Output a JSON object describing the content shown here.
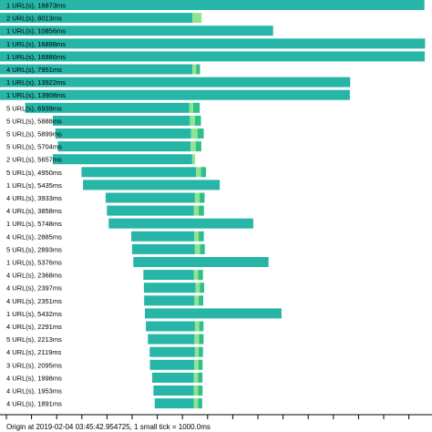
{
  "colors": {
    "main": "#26b5a7",
    "light_green": "#8fe58f",
    "mid_green": "#2fc08a",
    "axis": "#000000",
    "background": "#ffffff"
  },
  "scale": {
    "ms_per_small_tick": 1000,
    "start_ms": 0,
    "end_ms": 17000
  },
  "footer": {
    "text": "Origin at 2019-02-04 03:45:42.954725, 1 small tick = 1000.0ms"
  },
  "rows": [
    {
      "label": "1 URL(s), 16873ms",
      "start_ms": 0,
      "total_ms": 16873,
      "segments": [
        16873
      ]
    },
    {
      "label": "2 URL(s), 8013ms",
      "start_ms": 0,
      "total_ms": 8013,
      "segments": [
        7650,
        363
      ]
    },
    {
      "label": "1 URL(s), 10856ms",
      "start_ms": 0,
      "total_ms": 10856,
      "segments": [
        10856
      ]
    },
    {
      "label": "1 URL(s), 16898ms",
      "start_ms": 0,
      "total_ms": 16898,
      "segments": [
        16898
      ]
    },
    {
      "label": "1 URL(s), 16886ms",
      "start_ms": 0,
      "total_ms": 16886,
      "segments": [
        16886
      ]
    },
    {
      "label": "4 URL(s), 7951ms",
      "start_ms": 0,
      "total_ms": 7951,
      "segments": [
        7650,
        150,
        151
      ]
    },
    {
      "label": "1 URL(s), 13922ms",
      "start_ms": 0,
      "total_ms": 13922,
      "segments": [
        13922
      ]
    },
    {
      "label": "1 URL(s), 13908ms",
      "start_ms": 0,
      "total_ms": 13908,
      "segments": [
        13908
      ]
    },
    {
      "label": "5 URL(s), 6939ms",
      "start_ms": 1000,
      "total_ms": 6939,
      "segments": [
        6530,
        150,
        259
      ]
    },
    {
      "label": "5 URL(s), 5888ms",
      "start_ms": 2100,
      "total_ms": 5888,
      "segments": [
        5450,
        200,
        238
      ]
    },
    {
      "label": "5 URL(s), 5899ms",
      "start_ms": 2200,
      "total_ms": 5899,
      "segments": [
        5400,
        250,
        249
      ]
    },
    {
      "label": "5 URL(s), 5704ms",
      "start_ms": 2300,
      "total_ms": 5704,
      "segments": [
        5280,
        200,
        224
      ]
    },
    {
      "label": "2 URL(s), 5657ms",
      "start_ms": 2100,
      "total_ms": 5657,
      "segments": [
        5540,
        117
      ]
    },
    {
      "label": "5 URL(s), 4950ms",
      "start_ms": 3240,
      "total_ms": 4950,
      "segments": [
        4550,
        200,
        200
      ]
    },
    {
      "label": "1 URL(s), 5435ms",
      "start_ms": 3300,
      "total_ms": 5435,
      "segments": [
        5435
      ]
    },
    {
      "label": "4 URL(s), 3933ms",
      "start_ms": 4200,
      "total_ms": 3933,
      "segments": [
        3550,
        180,
        203
      ]
    },
    {
      "label": "4 URL(s), 3858ms",
      "start_ms": 4250,
      "total_ms": 3858,
      "segments": [
        3450,
        200,
        208
      ]
    },
    {
      "label": "1 URL(s), 5748ms",
      "start_ms": 4320,
      "total_ms": 5748,
      "segments": [
        5748
      ]
    },
    {
      "label": "4 URL(s), 2885ms",
      "start_ms": 5220,
      "total_ms": 2885,
      "segments": [
        2500,
        180,
        205
      ]
    },
    {
      "label": "5 URL(s), 2893ms",
      "start_ms": 5250,
      "total_ms": 2893,
      "segments": [
        2500,
        200,
        193
      ]
    },
    {
      "label": "1 URL(s), 5376ms",
      "start_ms": 5300,
      "total_ms": 5376,
      "segments": [
        5376
      ]
    },
    {
      "label": "4 URL(s), 2368ms",
      "start_ms": 5700,
      "total_ms": 2368,
      "segments": [
        2000,
        180,
        188
      ]
    },
    {
      "label": "4 URL(s), 2397ms",
      "start_ms": 5720,
      "total_ms": 2397,
      "segments": [
        2050,
        170,
        177
      ]
    },
    {
      "label": "4 URL(s), 2351ms",
      "start_ms": 5730,
      "total_ms": 2351,
      "segments": [
        2000,
        170,
        181
      ]
    },
    {
      "label": "1 URL(s), 5432ms",
      "start_ms": 5760,
      "total_ms": 5432,
      "segments": [
        5432
      ]
    },
    {
      "label": "4 URL(s), 2291ms",
      "start_ms": 5800,
      "total_ms": 2291,
      "segments": [
        1950,
        170,
        171
      ]
    },
    {
      "label": "5 URL(s), 2213ms",
      "start_ms": 5880,
      "total_ms": 2213,
      "segments": [
        1850,
        180,
        183
      ]
    },
    {
      "label": "4 URL(s), 2119ms",
      "start_ms": 5950,
      "total_ms": 2119,
      "segments": [
        1800,
        150,
        169
      ]
    },
    {
      "label": "3 URL(s), 2095ms",
      "start_ms": 5960,
      "total_ms": 2095,
      "segments": [
        1760,
        170,
        165
      ]
    },
    {
      "label": "4 URL(s), 1998ms",
      "start_ms": 6050,
      "total_ms": 1998,
      "segments": [
        1650,
        170,
        178
      ]
    },
    {
      "label": "4 URL(s), 1953ms",
      "start_ms": 6100,
      "total_ms": 1953,
      "segments": [
        1600,
        180,
        173
      ]
    },
    {
      "label": "4 URL(s), 1891ms",
      "start_ms": 6150,
      "total_ms": 1891,
      "segments": [
        1550,
        170,
        171
      ]
    }
  ]
}
